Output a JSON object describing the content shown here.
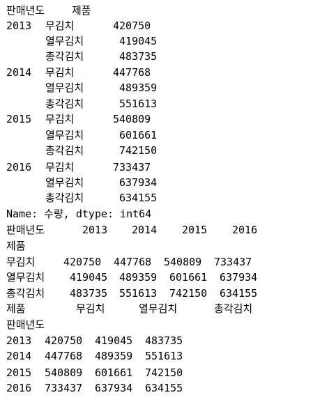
{
  "series_output": {
    "header": {
      "index_name_year": "판매년도",
      "index_name_product": "제품"
    },
    "rows": [
      {
        "year": "2013",
        "product": "무김치",
        "value": "420750"
      },
      {
        "year": "",
        "product": "열무김치",
        "value": "419045"
      },
      {
        "year": "",
        "product": "총각김치",
        "value": "483735"
      },
      {
        "year": "2014",
        "product": "무김치",
        "value": "447768"
      },
      {
        "year": "",
        "product": "열무김치",
        "value": "489359"
      },
      {
        "year": "",
        "product": "총각김치",
        "value": "551613"
      },
      {
        "year": "2015",
        "product": "무김치",
        "value": "540809"
      },
      {
        "year": "",
        "product": "열무김치",
        "value": "601661"
      },
      {
        "year": "",
        "product": "총각김치",
        "value": "742150"
      },
      {
        "year": "2016",
        "product": "무김치",
        "value": "733437"
      },
      {
        "year": "",
        "product": "열무김치",
        "value": "637934"
      },
      {
        "year": "",
        "product": "총각김치",
        "value": "634155"
      }
    ],
    "footer": "Name: 수량, dtype: int64"
  },
  "pivot_by_product": {
    "columns_name": "판매년도",
    "columns": [
      "2013",
      "2014",
      "2015",
      "2016"
    ],
    "index_name": "제품",
    "rows": [
      {
        "label": "무김치",
        "values": [
          "420750",
          "447768",
          "540809",
          "733437"
        ]
      },
      {
        "label": "열무김치",
        "values": [
          "419045",
          "489359",
          "601661",
          "637934"
        ]
      },
      {
        "label": "총각김치",
        "values": [
          "483735",
          "551613",
          "742150",
          "634155"
        ]
      }
    ]
  },
  "pivot_by_year": {
    "columns_name": "제품",
    "columns": [
      "무김치",
      "열무김치",
      "총각김치"
    ],
    "index_name": "판매년도",
    "rows": [
      {
        "label": "2013",
        "values": [
          "420750",
          "419045",
          "483735"
        ]
      },
      {
        "label": "2014",
        "values": [
          "447768",
          "489359",
          "551613"
        ]
      },
      {
        "label": "2015",
        "values": [
          "540809",
          "601661",
          "742150"
        ]
      },
      {
        "label": "2016",
        "values": [
          "733437",
          "637934",
          "634155"
        ]
      }
    ]
  }
}
